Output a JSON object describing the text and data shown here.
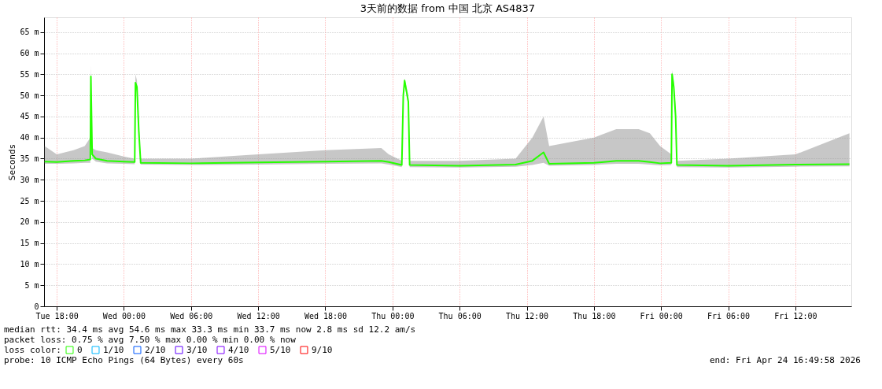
{
  "chart_data": {
    "type": "line",
    "title": "3天前的数据 from 中国 北京 AS4837",
    "ylabel": "Seconds",
    "legend_title": "loss color:",
    "legend": "bottom",
    "grid": true,
    "xlim": [
      "2026-04-21T16:52",
      "2026-04-24T17:00"
    ],
    "xticks": [
      {
        "value": "2026-04-21T18:00",
        "label": "Tue 18:00"
      },
      {
        "value": "2026-04-22T00:00",
        "label": "Wed 00:00"
      },
      {
        "value": "2026-04-22T06:00",
        "label": "Wed 06:00"
      },
      {
        "value": "2026-04-22T12:00",
        "label": "Wed 12:00"
      },
      {
        "value": "2026-04-22T18:00",
        "label": "Wed 18:00"
      },
      {
        "value": "2026-04-23T00:00",
        "label": "Thu 00:00"
      },
      {
        "value": "2026-04-23T06:00",
        "label": "Thu 06:00"
      },
      {
        "value": "2026-04-23T12:00",
        "label": "Thu 12:00"
      },
      {
        "value": "2026-04-23T18:00",
        "label": "Thu 18:00"
      },
      {
        "value": "2026-04-24T00:00",
        "label": "Fri 00:00"
      },
      {
        "value": "2026-04-24T06:00",
        "label": "Fri 06:00"
      },
      {
        "value": "2026-04-24T12:00",
        "label": "Fri 12:00"
      }
    ],
    "ylim": [
      0,
      68.5
    ],
    "yticks": [
      0,
      {
        "value": 5,
        "label": "5 m"
      },
      {
        "value": 10,
        "label": "10 m"
      },
      {
        "value": 15,
        "label": "15 m"
      },
      {
        "value": 20,
        "label": "20 m"
      },
      {
        "value": 25,
        "label": "25 m"
      },
      {
        "value": 30,
        "label": "30 m"
      },
      {
        "value": 35,
        "label": "35 m"
      },
      {
        "value": 40,
        "label": "40 m"
      },
      {
        "value": 45,
        "label": "45 m"
      },
      {
        "value": 50,
        "label": "50 m"
      },
      {
        "value": 55,
        "label": "55 m"
      },
      {
        "value": 60,
        "label": "60 m"
      },
      {
        "value": 65,
        "label": "65 m"
      }
    ],
    "x": [
      "2026-04-21T16:55",
      "2026-04-21T18:00",
      "2026-04-21T19:30",
      "2026-04-21T20:30",
      "2026-04-21T21:00",
      "2026-04-21T21:03",
      "2026-04-21T21:10",
      "2026-04-21T21:30",
      "2026-04-21T22:30",
      "2026-04-22T00:00",
      "2026-04-22T00:58",
      "2026-04-22T01:02",
      "2026-04-22T01:10",
      "2026-04-22T01:20",
      "2026-04-22T01:30",
      "2026-04-22T06:00",
      "2026-04-22T12:00",
      "2026-04-22T18:00",
      "2026-04-22T23:00",
      "2026-04-22T23:40",
      "2026-04-23T00:50",
      "2026-04-23T00:58",
      "2026-04-23T01:05",
      "2026-04-23T01:25",
      "2026-04-23T01:32",
      "2026-04-23T06:00",
      "2026-04-23T11:00",
      "2026-04-23T12:30",
      "2026-04-23T13:30",
      "2026-04-23T14:00",
      "2026-04-23T18:00",
      "2026-04-23T20:00",
      "2026-04-23T22:00",
      "2026-04-23T23:00",
      "2026-04-23T23:55",
      "2026-04-24T00:55",
      "2026-04-24T00:59",
      "2026-04-24T01:08",
      "2026-04-24T01:18",
      "2026-04-24T01:25",
      "2026-04-24T06:00",
      "2026-04-24T12:00",
      "2026-04-24T16:50"
    ],
    "series": [
      {
        "name": "0",
        "color": "#26ff00",
        "values": [
          34.3,
          34.2,
          34.5,
          34.6,
          34.8,
          54.5,
          36,
          35,
          34.5,
          34.3,
          34.2,
          53,
          52,
          41.5,
          34,
          33.9,
          34.1,
          34.3,
          34.5,
          34.2,
          33.5,
          50,
          53.5,
          48.5,
          33.5,
          33.3,
          33.6,
          34.5,
          36.5,
          33.8,
          34,
          34.5,
          34.5,
          34.2,
          33.9,
          34,
          55,
          52,
          45,
          33.5,
          33.3,
          33.6,
          33.7
        ],
        "lower": [
          33.8,
          33.8,
          33.9,
          34,
          34,
          53,
          35,
          34.3,
          33.9,
          33.8,
          33.7,
          52,
          51,
          40,
          33.6,
          33.5,
          33.6,
          33.8,
          33.9,
          33.6,
          33,
          49,
          52.5,
          47.5,
          33,
          32.9,
          33.1,
          33.5,
          34,
          33.3,
          33.5,
          33.8,
          33.8,
          33.6,
          33.4,
          33.5,
          54,
          51,
          44,
          33,
          32.9,
          33.1,
          33.2
        ],
        "upper": [
          38,
          36,
          37,
          38,
          40,
          57,
          37.5,
          37,
          36.5,
          35.5,
          35,
          55,
          53.5,
          44,
          35,
          35,
          36,
          37,
          37.5,
          36,
          34.5,
          51,
          54,
          50,
          34.5,
          34.5,
          35,
          40,
          45,
          38,
          40,
          42,
          42,
          41,
          38,
          36,
          56,
          53.5,
          47,
          34.5,
          35,
          36,
          41
        ]
      },
      {
        "name": "1/10",
        "color": "#00b8ff",
        "values": [
          null,
          null,
          null,
          null,
          null,
          null,
          null,
          null,
          null,
          null,
          null,
          null,
          null,
          null,
          null,
          null,
          null,
          null,
          null,
          null,
          null,
          null,
          null,
          null,
          null,
          null,
          null,
          null,
          null,
          null,
          null,
          null,
          null,
          null,
          null,
          null,
          null,
          null,
          null,
          null,
          null,
          null,
          null
        ]
      },
      {
        "name": "2/10",
        "color": "#0059ff",
        "values": [
          null,
          null,
          null,
          null,
          null,
          null,
          null,
          null,
          null,
          null,
          null,
          null,
          null,
          null,
          null,
          null,
          null,
          null,
          null,
          null,
          null,
          null,
          null,
          null,
          null,
          null,
          null,
          null,
          null,
          null,
          null,
          null,
          null,
          null,
          null,
          null,
          null,
          null,
          null,
          null,
          null,
          null,
          null
        ]
      },
      {
        "name": "3/10",
        "color": "#5e00ff",
        "values": [
          null,
          null,
          null,
          null,
          null,
          null,
          null,
          null,
          null,
          null,
          null,
          null,
          null,
          null,
          null,
          null,
          null,
          null,
          null,
          null,
          null,
          null,
          null,
          null,
          null,
          null,
          null,
          null,
          null,
          null,
          null,
          null,
          null,
          null,
          null,
          null,
          null,
          null,
          null,
          null,
          null,
          null,
          null
        ]
      },
      {
        "name": "4/10",
        "color": "#7e00ff",
        "values": [
          null,
          null,
          null,
          null,
          null,
          null,
          null,
          null,
          null,
          null,
          null,
          null,
          null,
          null,
          null,
          null,
          null,
          null,
          null,
          null,
          null,
          null,
          null,
          null,
          null,
          null,
          null,
          null,
          null,
          null,
          null,
          null,
          null,
          null,
          null,
          null,
          null,
          null,
          null,
          null,
          null,
          null,
          null
        ]
      },
      {
        "name": "5/10",
        "color": "#dd00ff",
        "values": [
          null,
          null,
          null,
          null,
          null,
          null,
          null,
          null,
          null,
          null,
          null,
          null,
          null,
          null,
          null,
          null,
          null,
          null,
          null,
          null,
          null,
          null,
          null,
          null,
          null,
          null,
          null,
          null,
          null,
          null,
          null,
          null,
          null,
          null,
          null,
          null,
          null,
          null,
          null,
          null,
          null,
          null,
          null
        ]
      },
      {
        "name": "9/10",
        "color": "#ff0000",
        "values": [
          null,
          null,
          null,
          null,
          null,
          null,
          null,
          null,
          null,
          null,
          null,
          null,
          null,
          null,
          null,
          null,
          null,
          null,
          null,
          null,
          null,
          null,
          null,
          null,
          null,
          null,
          null,
          null,
          null,
          null,
          null,
          null,
          null,
          null,
          null,
          null,
          null,
          null,
          null,
          null,
          null,
          null,
          null
        ]
      }
    ],
    "annotations": [
      "median rtt:  34.4 ms avg  54.6 ms max  33.3 ms min  33.7 ms now  2.8 ms sd  12.2   am/s",
      "packet loss: 0.75 % avg  7.50 % max  0.00 % min  0.00 % now",
      "probe:       10 ICMP Echo Pings (64 Bytes) every 60s",
      "end: Fri Apr 24 16:49:58 2026"
    ]
  }
}
